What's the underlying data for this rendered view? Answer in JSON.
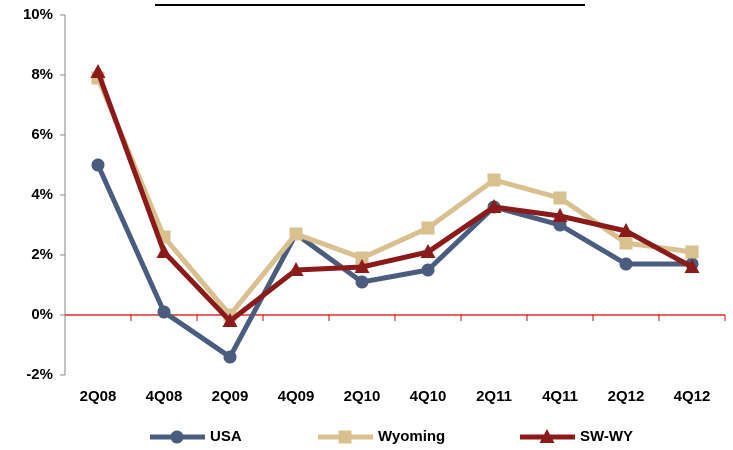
{
  "chart_data": {
    "type": "line",
    "categories": [
      "2Q08",
      "4Q08",
      "2Q09",
      "4Q09",
      "2Q10",
      "4Q10",
      "2Q11",
      "4Q11",
      "2Q12",
      "4Q12"
    ],
    "series": [
      {
        "name": "USA",
        "color": "#4a5d7e",
        "marker": "circle",
        "values": [
          5.0,
          0.1,
          -1.4,
          2.7,
          1.1,
          1.5,
          3.6,
          3.0,
          1.7,
          1.7
        ]
      },
      {
        "name": "Wyoming",
        "color": "#d9c08f",
        "marker": "square",
        "values": [
          7.9,
          2.6,
          0.0,
          2.7,
          1.9,
          2.9,
          4.5,
          3.9,
          2.4,
          2.1
        ]
      },
      {
        "name": "SW-WY",
        "color": "#8b1a1a",
        "marker": "triangle",
        "values": [
          8.1,
          2.1,
          -0.2,
          1.5,
          1.6,
          2.1,
          3.6,
          3.3,
          2.8,
          1.6
        ]
      }
    ],
    "ylim": [
      -2,
      10
    ],
    "yticks": [
      {
        "value": -2,
        "label": "-2%"
      },
      {
        "value": 0,
        "label": "0%"
      },
      {
        "value": 2,
        "label": "2%"
      },
      {
        "value": 4,
        "label": "4%"
      },
      {
        "value": 6,
        "label": "6%"
      },
      {
        "value": 8,
        "label": "8%"
      },
      {
        "value": 10,
        "label": "10%"
      }
    ],
    "zero_line_color": "#e00000",
    "legend": "bottom"
  }
}
